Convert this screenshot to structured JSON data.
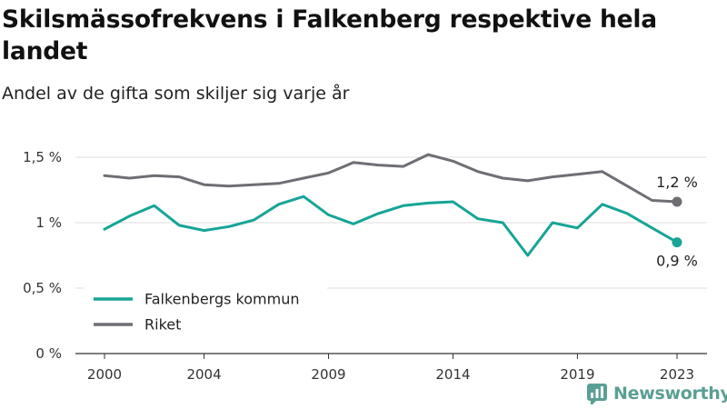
{
  "title": "Skilsmässofrekvens i Falkenberg respektive hela landet",
  "subtitle": "Andel av de gifta som skiljer sig varje år",
  "brand": "Newsworthy",
  "colors": {
    "falkenberg": "#16a596",
    "riket": "#6f6e74",
    "grid": "#dddddd",
    "brand": "#5a9f94"
  },
  "chart_data": {
    "type": "line",
    "x": [
      2000,
      2001,
      2002,
      2003,
      2004,
      2005,
      2006,
      2007,
      2008,
      2009,
      2010,
      2011,
      2012,
      2013,
      2014,
      2015,
      2016,
      2017,
      2018,
      2019,
      2020,
      2021,
      2022,
      2023
    ],
    "x_ticks": [
      2000,
      2004,
      2009,
      2014,
      2019,
      2023
    ],
    "x_tick_labels": [
      "2000",
      "2004",
      "2009",
      "2014",
      "2019",
      "2023"
    ],
    "y_ticks": [
      0,
      0.5,
      1,
      1.5
    ],
    "y_tick_labels": [
      "0 %",
      "0,5 %",
      "1 %",
      "1,5 %"
    ],
    "ylim": [
      0,
      1.5
    ],
    "grid": true,
    "legend_position": "bottom-left",
    "series": [
      {
        "name": "Falkenbergs kommun",
        "color": "#16a596",
        "values": [
          0.95,
          1.05,
          1.13,
          0.98,
          0.94,
          0.97,
          1.02,
          1.14,
          1.2,
          1.06,
          0.99,
          1.07,
          1.13,
          1.15,
          1.16,
          1.03,
          1.0,
          0.75,
          1.0,
          0.96,
          1.14,
          1.07,
          0.96,
          0.85
        ],
        "end_label": "0,9 %"
      },
      {
        "name": "Riket",
        "color": "#6f6e74",
        "values": [
          1.36,
          1.34,
          1.36,
          1.35,
          1.29,
          1.28,
          1.29,
          1.3,
          1.34,
          1.38,
          1.46,
          1.44,
          1.43,
          1.52,
          1.47,
          1.39,
          1.34,
          1.32,
          1.35,
          1.37,
          1.39,
          1.28,
          1.17,
          1.16
        ],
        "end_label": "1,2 %"
      }
    ]
  }
}
